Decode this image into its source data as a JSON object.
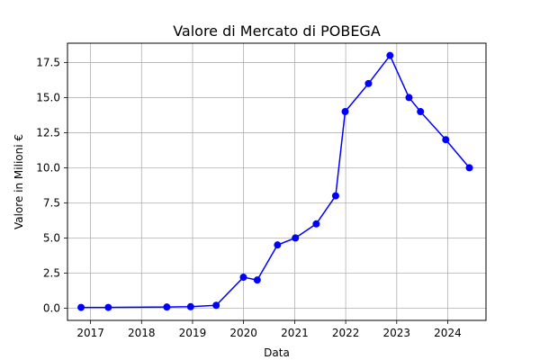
{
  "chart_data": {
    "type": "line",
    "title": "Valore di Mercato di POBEGA",
    "xlabel": "Data",
    "ylabel": "Valore in Milioni €",
    "xlim": [
      "2016-07-20",
      "2024-10-01"
    ],
    "ylim": [
      -0.875,
      18.875
    ],
    "x_ticks": [
      "2017",
      "2018",
      "2019",
      "2020",
      "2021",
      "2022",
      "2023",
      "2024"
    ],
    "y_ticks": [
      "0.0",
      "2.5",
      "5.0",
      "7.5",
      "10.0",
      "12.5",
      "15.0",
      "17.5"
    ],
    "grid": true,
    "series": [
      {
        "color": "#0000ff",
        "marker": "circle",
        "points": [
          {
            "x": "2016-10-25",
            "y": 0.05
          },
          {
            "x": "2017-05-08",
            "y": 0.05
          },
          {
            "x": "2018-07-01",
            "y": 0.075
          },
          {
            "x": "2018-12-18",
            "y": 0.1
          },
          {
            "x": "2019-06-19",
            "y": 0.2
          },
          {
            "x": "2019-12-31",
            "y": 2.2
          },
          {
            "x": "2020-04-08",
            "y": 2.0
          },
          {
            "x": "2020-08-31",
            "y": 4.5
          },
          {
            "x": "2021-01-06",
            "y": 5.0
          },
          {
            "x": "2021-06-04",
            "y": 6.0
          },
          {
            "x": "2021-10-21",
            "y": 8.0
          },
          {
            "x": "2021-12-28",
            "y": 14.0
          },
          {
            "x": "2022-06-13",
            "y": 16.0
          },
          {
            "x": "2022-11-14",
            "y": 18.0
          },
          {
            "x": "2023-03-30",
            "y": 15.0
          },
          {
            "x": "2023-06-20",
            "y": 14.0
          },
          {
            "x": "2023-12-18",
            "y": 12.0
          },
          {
            "x": "2024-06-04",
            "y": 10.0
          }
        ]
      }
    ]
  }
}
